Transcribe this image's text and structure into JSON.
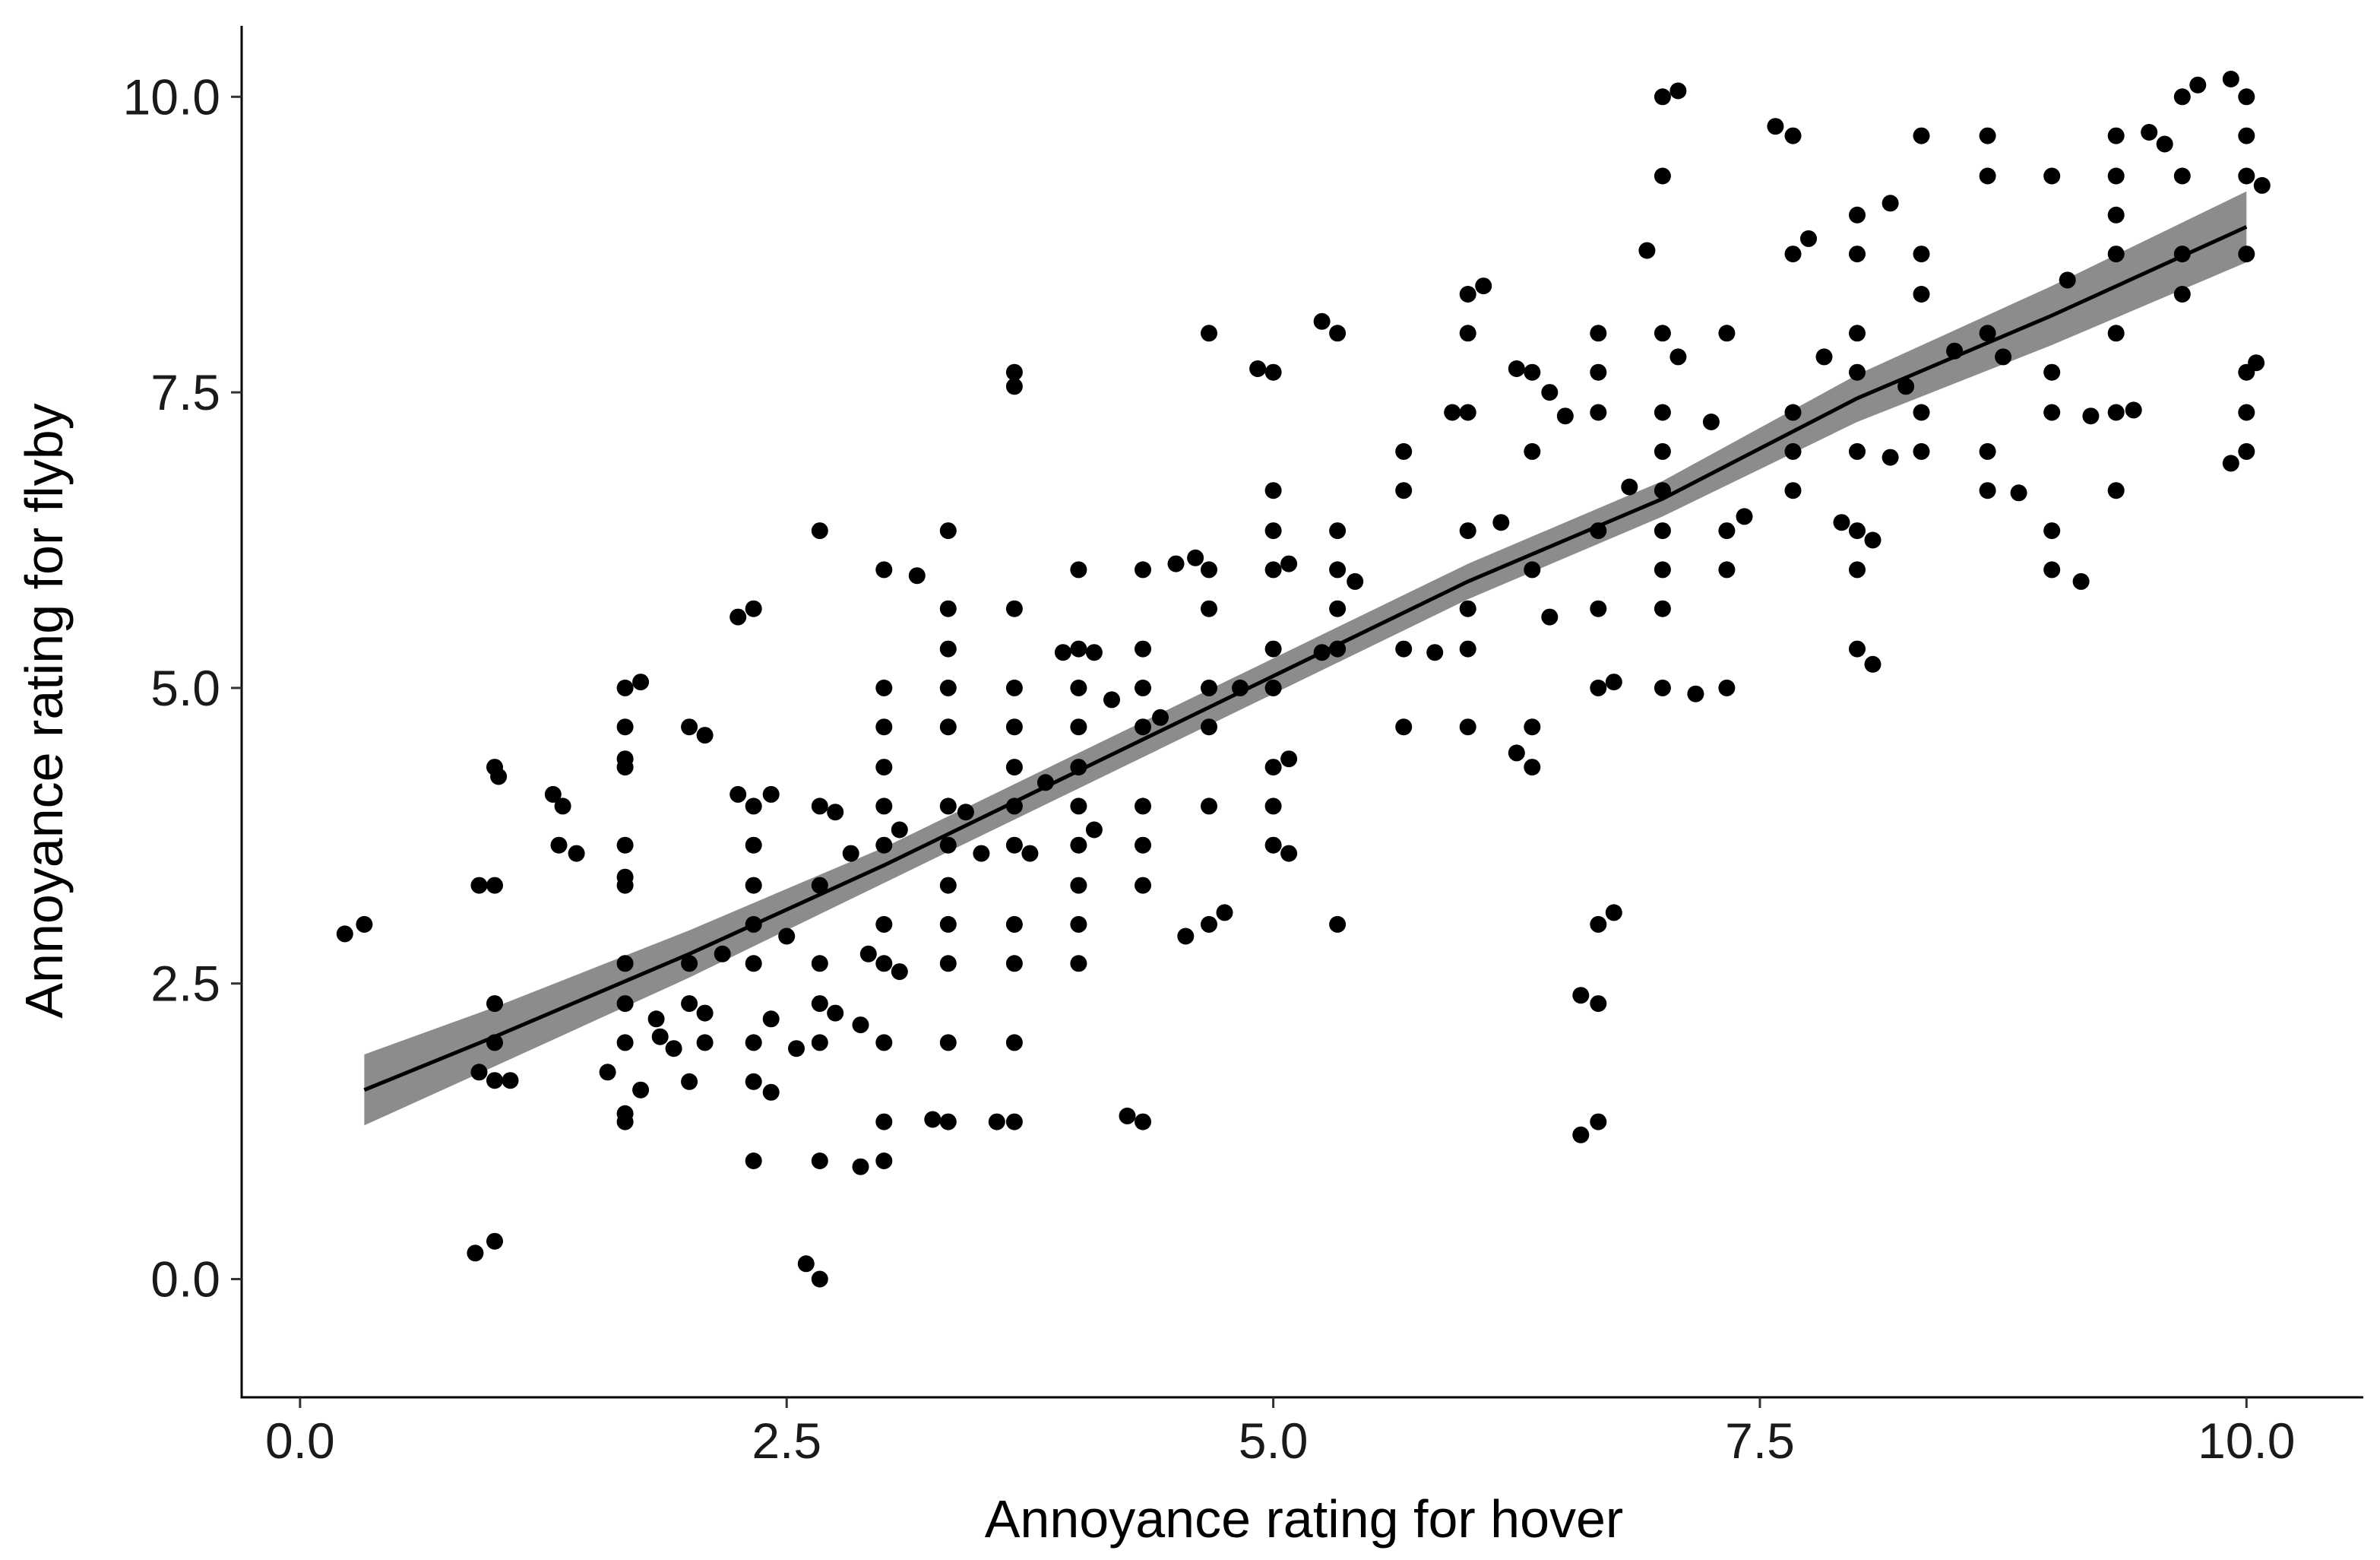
{
  "chart_data": {
    "type": "scatter",
    "title": "",
    "xlabel": "Annoyance rating for hover",
    "ylabel": "Annoyance rating for flyby",
    "xlim": [
      -0.3,
      10.6
    ],
    "ylim": [
      -1.0,
      10.6
    ],
    "x_ticks": [
      0,
      2.5,
      5,
      7.5,
      10
    ],
    "y_ticks": [
      0,
      2.5,
      5,
      7.5,
      10
    ],
    "x_tick_labels": [
      "0.0",
      "2.5",
      "5.0",
      "7.5",
      "10.0"
    ],
    "y_tick_labels": [
      "0.0",
      "2.5",
      "5.0",
      "7.5",
      "10.0"
    ],
    "grid": false,
    "legend": "none",
    "colors": {
      "points": "#000000",
      "fit_line": "#000000",
      "confidence_band": "#8c8c8c"
    },
    "fit": {
      "x": [
        0.33,
        1.0,
        2.0,
        3.0,
        4.0,
        5.0,
        6.0,
        7.0,
        8.0,
        9.0,
        10.0
      ],
      "y": [
        1.6,
        2.05,
        2.75,
        3.5,
        4.3,
        5.1,
        5.9,
        6.6,
        7.45,
        8.15,
        8.9
      ],
      "lower": [
        1.3,
        1.8,
        2.55,
        3.35,
        4.15,
        4.95,
        5.75,
        6.45,
        7.25,
        7.9,
        8.6
      ],
      "upper": [
        1.9,
        2.3,
        2.95,
        3.65,
        4.45,
        5.25,
        6.05,
        6.75,
        7.65,
        8.4,
        9.2
      ]
    },
    "series": [
      {
        "points": [
          [
            0.23,
            2.92
          ],
          [
            0.33,
            3.0
          ],
          [
            0.9,
            0.22
          ],
          [
            1.0,
            0.32
          ],
          [
            0.92,
            1.75
          ],
          [
            1.0,
            2.0
          ],
          [
            1.0,
            2.33
          ],
          [
            1.0,
            3.33
          ],
          [
            0.92,
            3.33
          ],
          [
            1.0,
            4.33
          ],
          [
            1.02,
            4.25
          ],
          [
            1.08,
            1.68
          ],
          [
            1.0,
            1.68
          ],
          [
            1.3,
            4.1
          ],
          [
            1.35,
            4.0
          ],
          [
            1.33,
            3.67
          ],
          [
            1.42,
            3.6
          ],
          [
            1.58,
            1.75
          ],
          [
            1.67,
            1.33
          ],
          [
            1.67,
            1.4
          ],
          [
            1.67,
            2.0
          ],
          [
            1.67,
            2.33
          ],
          [
            1.67,
            2.67
          ],
          [
            1.67,
            3.33
          ],
          [
            1.67,
            3.4
          ],
          [
            1.67,
            3.67
          ],
          [
            1.67,
            4.33
          ],
          [
            1.67,
            4.4
          ],
          [
            1.67,
            4.67
          ],
          [
            1.67,
            5.0
          ],
          [
            1.75,
            5.05
          ],
          [
            1.75,
            1.6
          ],
          [
            1.83,
            2.2
          ],
          [
            1.85,
            2.05
          ],
          [
            1.92,
            1.95
          ],
          [
            2.0,
            1.67
          ],
          [
            2.0,
            2.33
          ],
          [
            2.0,
            2.67
          ],
          [
            2.0,
            4.67
          ],
          [
            2.08,
            4.6
          ],
          [
            2.08,
            2.0
          ],
          [
            2.08,
            2.25
          ],
          [
            2.17,
            2.75
          ],
          [
            2.25,
            4.1
          ],
          [
            2.25,
            5.6
          ],
          [
            2.33,
            1.0
          ],
          [
            2.33,
            1.67
          ],
          [
            2.33,
            2.0
          ],
          [
            2.33,
            2.67
          ],
          [
            2.33,
            3.0
          ],
          [
            2.33,
            3.33
          ],
          [
            2.33,
            3.67
          ],
          [
            2.33,
            4.0
          ],
          [
            2.33,
            5.67
          ],
          [
            2.42,
            4.1
          ],
          [
            2.42,
            1.58
          ],
          [
            2.42,
            2.2
          ],
          [
            2.5,
            2.9
          ],
          [
            2.55,
            1.95
          ],
          [
            2.6,
            0.13
          ],
          [
            2.67,
            0.0
          ],
          [
            2.67,
            1.0
          ],
          [
            2.67,
            2.0
          ],
          [
            2.67,
            2.33
          ],
          [
            2.67,
            2.67
          ],
          [
            2.67,
            3.33
          ],
          [
            2.67,
            4.0
          ],
          [
            2.67,
            6.33
          ],
          [
            2.75,
            2.25
          ],
          [
            2.75,
            3.95
          ],
          [
            2.83,
            3.6
          ],
          [
            2.88,
            0.95
          ],
          [
            2.88,
            2.15
          ],
          [
            2.92,
            2.75
          ],
          [
            3.0,
            1.0
          ],
          [
            3.0,
            1.33
          ],
          [
            3.0,
            2.0
          ],
          [
            3.0,
            2.67
          ],
          [
            3.0,
            3.0
          ],
          [
            3.0,
            3.67
          ],
          [
            3.0,
            4.0
          ],
          [
            3.0,
            4.33
          ],
          [
            3.0,
            4.67
          ],
          [
            3.0,
            5.0
          ],
          [
            3.0,
            6.0
          ],
          [
            3.08,
            2.6
          ],
          [
            3.08,
            3.8
          ],
          [
            3.17,
            5.95
          ],
          [
            3.25,
            1.35
          ],
          [
            3.33,
            1.33
          ],
          [
            3.33,
            2.0
          ],
          [
            3.33,
            2.67
          ],
          [
            3.33,
            3.0
          ],
          [
            3.33,
            3.33
          ],
          [
            3.33,
            3.67
          ],
          [
            3.33,
            4.0
          ],
          [
            3.33,
            4.67
          ],
          [
            3.33,
            5.0
          ],
          [
            3.33,
            5.33
          ],
          [
            3.33,
            5.67
          ],
          [
            3.33,
            6.33
          ],
          [
            3.42,
            3.95
          ],
          [
            3.5,
            3.6
          ],
          [
            3.58,
            1.33
          ],
          [
            3.67,
            1.33
          ],
          [
            3.67,
            2.0
          ],
          [
            3.67,
            2.67
          ],
          [
            3.67,
            3.0
          ],
          [
            3.67,
            3.67
          ],
          [
            3.67,
            4.0
          ],
          [
            3.67,
            4.33
          ],
          [
            3.67,
            4.67
          ],
          [
            3.67,
            5.0
          ],
          [
            3.67,
            5.67
          ],
          [
            3.67,
            7.67
          ],
          [
            3.67,
            7.55
          ],
          [
            3.75,
            3.6
          ],
          [
            3.83,
            4.2
          ],
          [
            3.92,
            5.3
          ],
          [
            4.0,
            2.67
          ],
          [
            4.0,
            3.0
          ],
          [
            4.0,
            3.33
          ],
          [
            4.0,
            3.67
          ],
          [
            4.0,
            4.0
          ],
          [
            4.0,
            4.33
          ],
          [
            4.0,
            4.67
          ],
          [
            4.0,
            5.0
          ],
          [
            4.0,
            5.33
          ],
          [
            4.0,
            6.0
          ],
          [
            4.08,
            3.8
          ],
          [
            4.08,
            5.3
          ],
          [
            4.17,
            4.9
          ],
          [
            4.25,
            1.38
          ],
          [
            4.33,
            1.33
          ],
          [
            4.33,
            3.33
          ],
          [
            4.33,
            3.67
          ],
          [
            4.33,
            4.0
          ],
          [
            4.33,
            4.67
          ],
          [
            4.33,
            5.0
          ],
          [
            4.33,
            5.33
          ],
          [
            4.33,
            6.0
          ],
          [
            4.42,
            4.75
          ],
          [
            4.5,
            6.05
          ],
          [
            4.55,
            2.9
          ],
          [
            4.6,
            6.1
          ],
          [
            4.67,
            3.0
          ],
          [
            4.67,
            4.0
          ],
          [
            4.67,
            4.67
          ],
          [
            4.67,
            5.0
          ],
          [
            4.67,
            5.67
          ],
          [
            4.67,
            6.0
          ],
          [
            4.67,
            8.0
          ],
          [
            4.75,
            3.1
          ],
          [
            4.83,
            5.0
          ],
          [
            4.92,
            7.7
          ],
          [
            5.0,
            3.67
          ],
          [
            5.0,
            4.0
          ],
          [
            5.0,
            4.33
          ],
          [
            5.0,
            5.0
          ],
          [
            5.0,
            5.33
          ],
          [
            5.0,
            6.0
          ],
          [
            5.0,
            6.33
          ],
          [
            5.0,
            6.67
          ],
          [
            5.0,
            7.67
          ],
          [
            5.08,
            3.6
          ],
          [
            5.08,
            4.4
          ],
          [
            5.08,
            6.05
          ],
          [
            5.25,
            5.3
          ],
          [
            5.25,
            8.1
          ],
          [
            5.33,
            3.0
          ],
          [
            5.33,
            5.33
          ],
          [
            5.33,
            5.67
          ],
          [
            5.33,
            6.0
          ],
          [
            5.33,
            6.33
          ],
          [
            5.33,
            8.0
          ],
          [
            5.42,
            5.9
          ],
          [
            5.67,
            4.67
          ],
          [
            5.67,
            5.33
          ],
          [
            5.67,
            6.67
          ],
          [
            5.67,
            7.0
          ],
          [
            5.83,
            5.3
          ],
          [
            5.92,
            7.33
          ],
          [
            6.0,
            4.67
          ],
          [
            6.0,
            5.33
          ],
          [
            6.0,
            5.67
          ],
          [
            6.0,
            6.33
          ],
          [
            6.0,
            7.33
          ],
          [
            6.0,
            8.0
          ],
          [
            6.0,
            8.33
          ],
          [
            6.08,
            8.4
          ],
          [
            6.17,
            6.4
          ],
          [
            6.25,
            4.45
          ],
          [
            6.25,
            7.7
          ],
          [
            6.33,
            4.33
          ],
          [
            6.33,
            4.67
          ],
          [
            6.33,
            6.0
          ],
          [
            6.33,
            7.0
          ],
          [
            6.33,
            7.67
          ],
          [
            6.42,
            5.6
          ],
          [
            6.42,
            7.5
          ],
          [
            6.5,
            7.3
          ],
          [
            6.58,
            1.22
          ],
          [
            6.58,
            2.4
          ],
          [
            6.67,
            1.33
          ],
          [
            6.67,
            2.33
          ],
          [
            6.67,
            3.0
          ],
          [
            6.67,
            5.0
          ],
          [
            6.67,
            5.67
          ],
          [
            6.67,
            6.33
          ],
          [
            6.67,
            7.33
          ],
          [
            6.67,
            7.67
          ],
          [
            6.67,
            8.0
          ],
          [
            6.75,
            3.1
          ],
          [
            6.75,
            5.05
          ],
          [
            6.83,
            6.7
          ],
          [
            6.92,
            8.7
          ],
          [
            7.0,
            5.0
          ],
          [
            7.0,
            5.67
          ],
          [
            7.0,
            6.0
          ],
          [
            7.0,
            6.33
          ],
          [
            7.0,
            6.67
          ],
          [
            7.0,
            7.0
          ],
          [
            7.0,
            7.33
          ],
          [
            7.0,
            8.0
          ],
          [
            7.0,
            9.33
          ],
          [
            7.0,
            10.0
          ],
          [
            7.08,
            7.8
          ],
          [
            7.08,
            10.05
          ],
          [
            7.17,
            4.95
          ],
          [
            7.25,
            7.25
          ],
          [
            7.33,
            5.0
          ],
          [
            7.33,
            6.0
          ],
          [
            7.33,
            6.33
          ],
          [
            7.33,
            8.0
          ],
          [
            7.42,
            6.45
          ],
          [
            7.58,
            9.75
          ],
          [
            7.67,
            6.67
          ],
          [
            7.67,
            7.0
          ],
          [
            7.67,
            7.33
          ],
          [
            7.67,
            8.67
          ],
          [
            7.67,
            9.67
          ],
          [
            7.75,
            8.8
          ],
          [
            7.83,
            7.8
          ],
          [
            7.92,
            6.4
          ],
          [
            8.0,
            5.33
          ],
          [
            8.0,
            6.0
          ],
          [
            8.0,
            6.33
          ],
          [
            8.0,
            7.0
          ],
          [
            8.0,
            7.67
          ],
          [
            8.0,
            8.0
          ],
          [
            8.0,
            8.67
          ],
          [
            8.0,
            9.0
          ],
          [
            8.08,
            5.2
          ],
          [
            8.08,
            6.25
          ],
          [
            8.17,
            9.1
          ],
          [
            8.17,
            6.95
          ],
          [
            8.25,
            7.55
          ],
          [
            8.33,
            7.0
          ],
          [
            8.33,
            7.33
          ],
          [
            8.33,
            8.33
          ],
          [
            8.33,
            8.67
          ],
          [
            8.33,
            9.67
          ],
          [
            8.5,
            7.85
          ],
          [
            8.67,
            6.67
          ],
          [
            8.67,
            7.0
          ],
          [
            8.67,
            8.0
          ],
          [
            8.67,
            9.33
          ],
          [
            8.67,
            9.67
          ],
          [
            8.75,
            7.8
          ],
          [
            8.83,
            6.65
          ],
          [
            9.0,
            6.0
          ],
          [
            9.0,
            6.33
          ],
          [
            9.0,
            7.33
          ],
          [
            9.0,
            7.67
          ],
          [
            9.0,
            9.33
          ],
          [
            9.08,
            8.45
          ],
          [
            9.15,
            5.9
          ],
          [
            9.2,
            7.3
          ],
          [
            9.33,
            6.67
          ],
          [
            9.33,
            7.33
          ],
          [
            9.33,
            8.0
          ],
          [
            9.33,
            8.67
          ],
          [
            9.33,
            9.0
          ],
          [
            9.33,
            9.33
          ],
          [
            9.33,
            9.67
          ],
          [
            9.42,
            7.35
          ],
          [
            9.5,
            9.7
          ],
          [
            9.58,
            9.6
          ],
          [
            9.67,
            8.33
          ],
          [
            9.67,
            8.67
          ],
          [
            9.67,
            9.33
          ],
          [
            9.67,
            10.0
          ],
          [
            9.75,
            10.1
          ],
          [
            9.92,
            6.9
          ],
          [
            9.92,
            10.15
          ],
          [
            10.0,
            7.0
          ],
          [
            10.0,
            7.33
          ],
          [
            10.0,
            7.67
          ],
          [
            10.0,
            8.67
          ],
          [
            10.0,
            9.33
          ],
          [
            10.0,
            9.67
          ],
          [
            10.0,
            10.0
          ],
          [
            10.05,
            7.75
          ],
          [
            10.08,
            9.25
          ]
        ]
      }
    ]
  }
}
